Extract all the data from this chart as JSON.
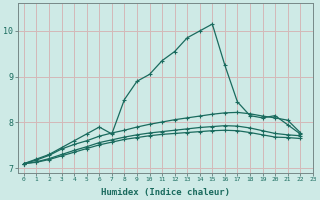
{
  "background_color": "#ceeae6",
  "grid_color": "#d4b8b8",
  "line_color": "#1a6b5e",
  "xlim": [
    -0.5,
    23
  ],
  "ylim": [
    6.9,
    10.6
  ],
  "xlabel": "Humidex (Indice chaleur)",
  "xticks": [
    0,
    1,
    2,
    3,
    4,
    5,
    6,
    7,
    8,
    9,
    10,
    11,
    12,
    13,
    14,
    15,
    16,
    17,
    18,
    19,
    20,
    21,
    22,
    23
  ],
  "yticks": [
    7,
    8,
    9,
    10
  ],
  "series": [
    {
      "x": [
        0,
        1,
        2,
        3,
        4,
        5,
        6,
        7,
        8,
        9,
        10,
        11,
        12,
        13,
        14,
        15,
        16,
        17,
        18,
        19,
        20,
        21,
        22
      ],
      "y": [
        7.1,
        7.2,
        7.3,
        7.45,
        7.6,
        7.75,
        7.9,
        7.75,
        8.5,
        8.9,
        9.05,
        9.35,
        9.55,
        9.85,
        10.0,
        10.15,
        9.25,
        8.45,
        8.15,
        8.1,
        8.15,
        7.95,
        7.75
      ]
    },
    {
      "x": [
        0,
        1,
        2,
        3,
        4,
        5,
        6,
        7,
        8,
        9,
        10,
        11,
        12,
        13,
        14,
        15,
        16,
        17,
        18,
        19,
        20,
        21,
        22
      ],
      "y": [
        7.1,
        7.18,
        7.28,
        7.42,
        7.52,
        7.6,
        7.7,
        7.77,
        7.83,
        7.9,
        7.96,
        8.01,
        8.06,
        8.1,
        8.14,
        8.18,
        8.21,
        8.22,
        8.19,
        8.14,
        8.1,
        8.05,
        7.78
      ]
    },
    {
      "x": [
        0,
        1,
        2,
        3,
        4,
        5,
        6,
        7,
        8,
        9,
        10,
        11,
        12,
        13,
        14,
        15,
        16,
        17,
        18,
        19,
        20,
        21,
        22
      ],
      "y": [
        7.1,
        7.14,
        7.21,
        7.3,
        7.39,
        7.47,
        7.56,
        7.62,
        7.68,
        7.73,
        7.77,
        7.8,
        7.83,
        7.86,
        7.89,
        7.91,
        7.93,
        7.92,
        7.88,
        7.82,
        7.76,
        7.73,
        7.71
      ]
    },
    {
      "x": [
        0,
        1,
        2,
        3,
        4,
        5,
        6,
        7,
        8,
        9,
        10,
        11,
        12,
        13,
        14,
        15,
        16,
        17,
        18,
        19,
        20,
        21,
        22
      ],
      "y": [
        7.1,
        7.13,
        7.19,
        7.27,
        7.35,
        7.43,
        7.51,
        7.57,
        7.63,
        7.67,
        7.71,
        7.74,
        7.76,
        7.78,
        7.8,
        7.82,
        7.83,
        7.82,
        7.78,
        7.73,
        7.68,
        7.67,
        7.65
      ]
    }
  ]
}
